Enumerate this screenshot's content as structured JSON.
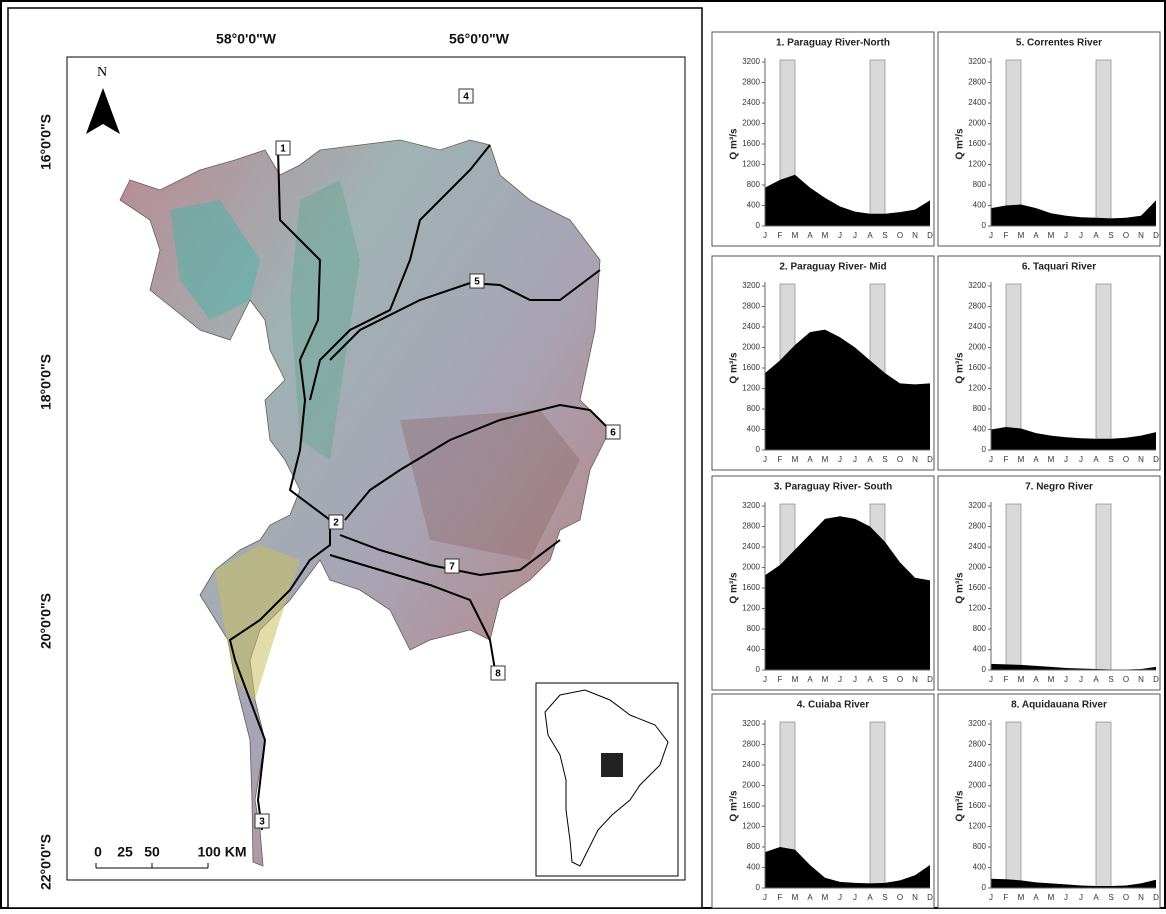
{
  "map": {
    "lon_labels": [
      "58°0'0\"W",
      "56°0'0\"W"
    ],
    "lat_labels": [
      "16°0'0\"S",
      "18°0'0\"S",
      "20°0'0\"S",
      "22°0'0\"S"
    ],
    "north": "N",
    "sites": [
      "1",
      "2",
      "3",
      "4",
      "5",
      "6",
      "7",
      "8"
    ],
    "scale_labels": [
      "0",
      "25",
      "50",
      "100 KM"
    ]
  },
  "chart_data": [
    {
      "type": "area",
      "title": "1. Paraguay River-North",
      "y_label": "Q m³/s",
      "categories": [
        "J",
        "F",
        "M",
        "A",
        "M",
        "J",
        "J",
        "A",
        "S",
        "O",
        "N",
        "D"
      ],
      "values": [
        750,
        900,
        1000,
        750,
        550,
        380,
        280,
        240,
        240,
        270,
        320,
        500
      ],
      "color": "#000000",
      "shaded_spans": [
        [
          1,
          2
        ],
        [
          7,
          8
        ]
      ],
      "ylim": [
        0,
        3200
      ],
      "yticks": [
        0,
        400,
        800,
        1200,
        1600,
        2000,
        2400,
        2800,
        3200
      ]
    },
    {
      "type": "area",
      "title": "2. Paraguay River- Mid",
      "y_label": "Q m³/s",
      "categories": [
        "J",
        "F",
        "M",
        "A",
        "M",
        "J",
        "J",
        "A",
        "S",
        "O",
        "N",
        "D"
      ],
      "values": [
        1500,
        1750,
        2050,
        2300,
        2350,
        2200,
        2000,
        1750,
        1500,
        1300,
        1280,
        1300
      ],
      "color": "#000000",
      "shaded_spans": [
        [
          1,
          2
        ],
        [
          7,
          8
        ]
      ],
      "ylim": [
        0,
        3200
      ],
      "yticks": [
        0,
        400,
        800,
        1200,
        1600,
        2000,
        2400,
        2800,
        3200
      ]
    },
    {
      "type": "area",
      "title": "3. Paraguay River- South",
      "y_label": "Q m³/s",
      "categories": [
        "J",
        "F",
        "M",
        "A",
        "M",
        "J",
        "J",
        "A",
        "S",
        "O",
        "N",
        "D"
      ],
      "values": [
        1850,
        2050,
        2350,
        2650,
        2950,
        3000,
        2950,
        2800,
        2500,
        2100,
        1800,
        1750
      ],
      "color": "#000000",
      "shaded_spans": [
        [
          1,
          2
        ],
        [
          7,
          8
        ]
      ],
      "ylim": [
        0,
        3200
      ],
      "yticks": [
        0,
        400,
        800,
        1200,
        1600,
        2000,
        2400,
        2800,
        3200
      ]
    },
    {
      "type": "area",
      "title": "4. Cuiaba River",
      "y_label": "Q m³/s",
      "categories": [
        "J",
        "F",
        "M",
        "A",
        "M",
        "J",
        "J",
        "A",
        "S",
        "O",
        "N",
        "D"
      ],
      "values": [
        700,
        800,
        750,
        450,
        200,
        120,
        100,
        90,
        100,
        150,
        250,
        450
      ],
      "color": "#000000",
      "shaded_spans": [
        [
          1,
          2
        ],
        [
          7,
          8
        ]
      ],
      "ylim": [
        0,
        3200
      ],
      "yticks": [
        0,
        400,
        800,
        1200,
        1600,
        2000,
        2400,
        2800,
        3200
      ]
    },
    {
      "type": "area",
      "title": "5. Correntes River",
      "y_label": "Q m³/s",
      "categories": [
        "J",
        "F",
        "M",
        "A",
        "M",
        "J",
        "J",
        "A",
        "S",
        "O",
        "N",
        "D"
      ],
      "values": [
        350,
        400,
        420,
        350,
        250,
        200,
        170,
        160,
        150,
        160,
        200,
        500
      ],
      "color": "#000000",
      "shaded_spans": [
        [
          1,
          2
        ],
        [
          7,
          8
        ]
      ],
      "ylim": [
        0,
        3200
      ],
      "yticks": [
        0,
        400,
        800,
        1200,
        1600,
        2000,
        2400,
        2800,
        3200
      ]
    },
    {
      "type": "area",
      "title": "6. Taquari River",
      "y_label": "Q m³/s",
      "categories": [
        "J",
        "F",
        "M",
        "A",
        "M",
        "J",
        "J",
        "A",
        "S",
        "O",
        "N",
        "D"
      ],
      "values": [
        400,
        450,
        420,
        330,
        280,
        250,
        230,
        220,
        220,
        240,
        280,
        350
      ],
      "color": "#000000",
      "shaded_spans": [
        [
          1,
          2
        ],
        [
          7,
          8
        ]
      ],
      "ylim": [
        0,
        3200
      ],
      "yticks": [
        0,
        400,
        800,
        1200,
        1600,
        2000,
        2400,
        2800,
        3200
      ]
    },
    {
      "type": "area",
      "title": "7. Negro River",
      "y_label": "Q m³/s",
      "categories": [
        "J",
        "F",
        "M",
        "A",
        "M",
        "J",
        "J",
        "A",
        "S",
        "O",
        "N",
        "D"
      ],
      "values": [
        120,
        110,
        100,
        80,
        60,
        40,
        30,
        20,
        10,
        10,
        20,
        60
      ],
      "color": "#000000",
      "shaded_spans": [
        [
          1,
          2
        ],
        [
          7,
          8
        ]
      ],
      "ylim": [
        0,
        3200
      ],
      "yticks": [
        0,
        400,
        800,
        1200,
        1600,
        2000,
        2400,
        2800,
        3200
      ]
    },
    {
      "type": "area",
      "title": "8. Aquidauana River",
      "y_label": "Q m³/s",
      "categories": [
        "J",
        "F",
        "M",
        "A",
        "M",
        "J",
        "J",
        "A",
        "S",
        "O",
        "N",
        "D"
      ],
      "values": [
        180,
        170,
        150,
        110,
        90,
        70,
        50,
        40,
        40,
        50,
        90,
        160
      ],
      "color": "#000000",
      "shaded_spans": [
        [
          1,
          2
        ],
        [
          7,
          8
        ]
      ],
      "ylim": [
        0,
        3200
      ],
      "yticks": [
        0,
        400,
        800,
        1200,
        1600,
        2000,
        2400,
        2800,
        3200
      ]
    }
  ]
}
